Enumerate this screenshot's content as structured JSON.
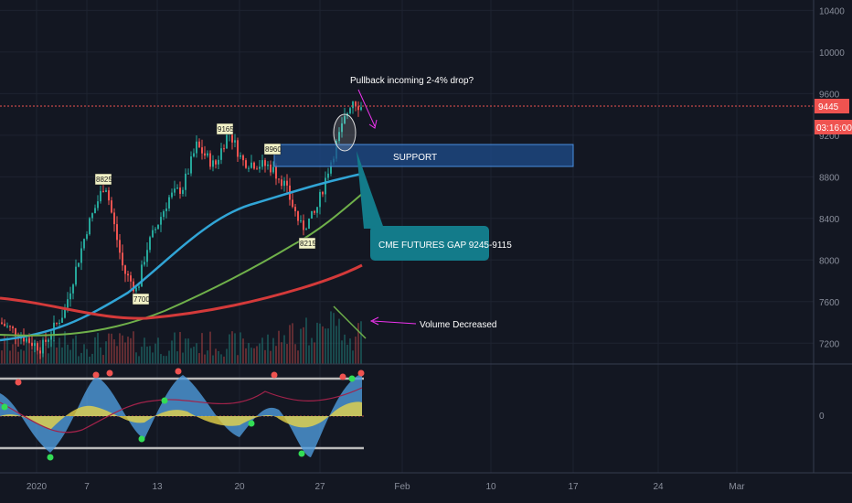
{
  "chart_data": {
    "type": "candlestick",
    "price_axis": {
      "ticks": [
        7200,
        7600,
        8000,
        8400,
        8800,
        9200,
        9600,
        10000,
        10400
      ],
      "range": [
        7000,
        10500
      ]
    },
    "oscillator_axis": {
      "ticks": [
        0
      ]
    },
    "time_axis": {
      "ticks": [
        "2020",
        "7",
        "13",
        "20",
        "27",
        "Feb",
        "10",
        "17",
        "24",
        "Mar"
      ]
    },
    "current_price": "9445",
    "countdown": "03:16:00",
    "annotations": {
      "pullback": "Pullback incoming 2-4% drop?",
      "support": "SUPPORT",
      "gap": "CME FUTURES GAP 9245-9115",
      "volume": "Volume Decreased"
    },
    "price_marks": [
      "8825",
      "9165",
      "8960",
      "7700",
      "8215"
    ],
    "colors": {
      "up": "#26a69a",
      "down": "#ef5350",
      "ma_fast": "#31a5d6",
      "ma_mid": "#6fb04a",
      "ma_slow": "#d43a3a",
      "accent": "#ee33ee",
      "callout": "#137b8a"
    }
  }
}
